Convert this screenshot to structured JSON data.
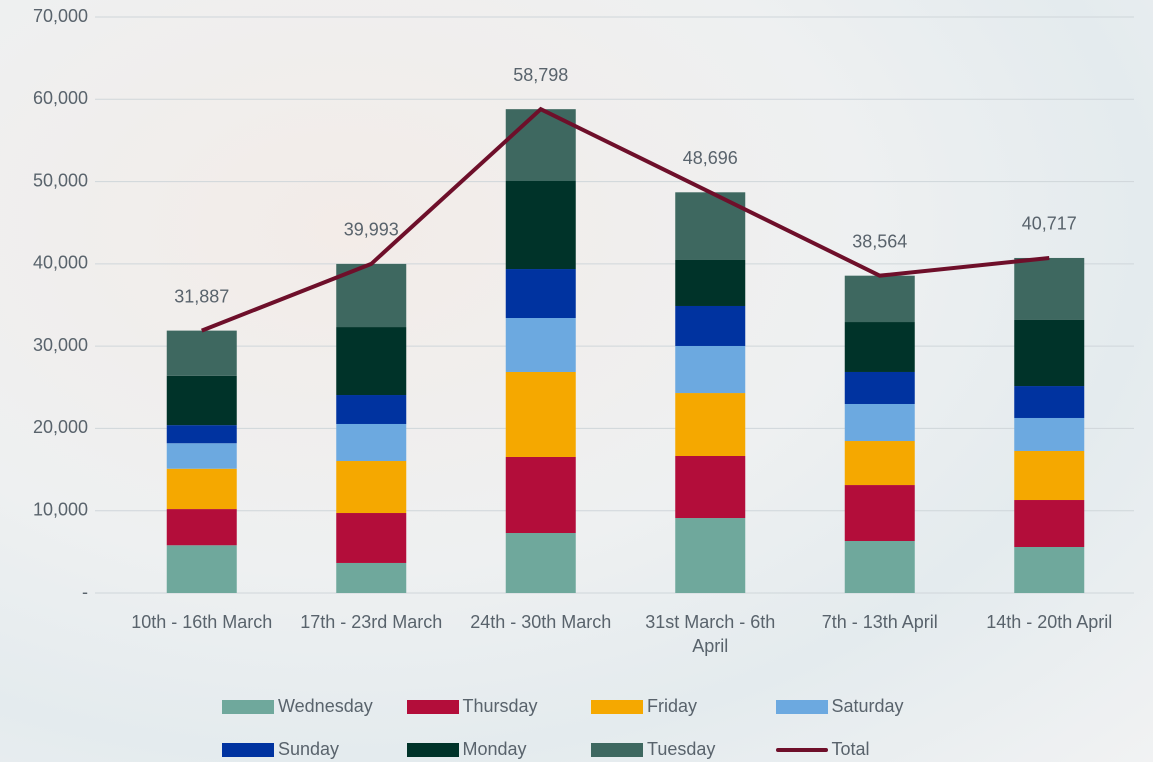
{
  "chart_data": {
    "type": "bar",
    "stacked": true,
    "categories": [
      "10th - 16th March",
      "17th - 23rd March",
      "24th - 30th March",
      "31st March - 6th April",
      "7th - 13th April",
      "14th - 20th April"
    ],
    "series": [
      {
        "name": "Wednesday",
        "color": "#6fa89c",
        "values": [
          5800,
          3650,
          7290,
          9110,
          6320,
          5590
        ]
      },
      {
        "name": "Thursday",
        "color": "#b30d3a",
        "values": [
          4400,
          6070,
          9240,
          7540,
          6800,
          5710
        ]
      },
      {
        "name": "Friday",
        "color": "#f5a800",
        "values": [
          4900,
          6320,
          10330,
          7650,
          5350,
          5960
        ]
      },
      {
        "name": "Saturday",
        "color": "#6ca9e0",
        "values": [
          3100,
          4500,
          6560,
          5720,
          4500,
          4010
        ]
      },
      {
        "name": "Sunday",
        "color": "#0033a0",
        "values": [
          2200,
          3520,
          5950,
          4860,
          3890,
          3880
        ]
      },
      {
        "name": "Monday",
        "color": "#003329",
        "values": [
          6000,
          8260,
          10700,
          5590,
          6070,
          8030
        ]
      },
      {
        "name": "Tuesday",
        "color": "#3e6860",
        "values": [
          5487,
          7673,
          8728,
          8226,
          5634,
          7537
        ]
      },
      {
        "name": "Total",
        "type": "line",
        "color": "#6e0f2a",
        "values": [
          31887,
          39993,
          58798,
          48696,
          38564,
          40717
        ],
        "value_labels": [
          "31,887",
          "39,993",
          "58,798",
          "48,696",
          "38,564",
          "40,717"
        ]
      }
    ],
    "ylim": [
      0,
      70000
    ],
    "yticks": [
      {
        "value": 0,
        "label": "-"
      },
      {
        "value": 10000,
        "label": "10,000"
      },
      {
        "value": 20000,
        "label": "20,000"
      },
      {
        "value": 30000,
        "label": "30,000"
      },
      {
        "value": 40000,
        "label": "40,000"
      },
      {
        "value": 50000,
        "label": "50,000"
      },
      {
        "value": 60000,
        "label": "60,000"
      },
      {
        "value": 70000,
        "label": "70,000"
      }
    ],
    "grid": true,
    "legend": "bottom"
  }
}
